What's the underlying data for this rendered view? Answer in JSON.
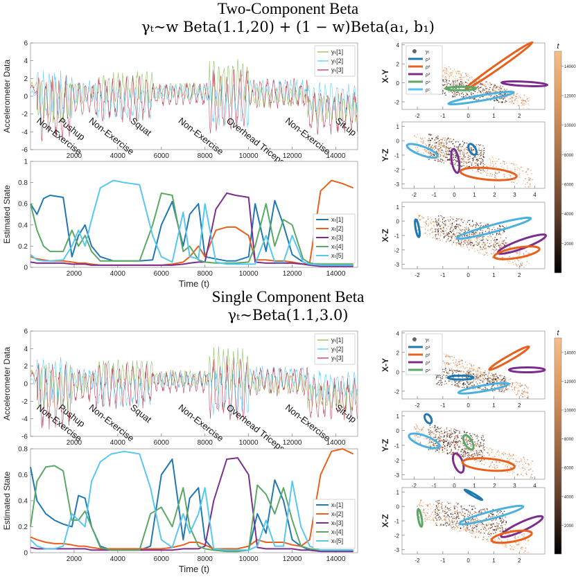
{
  "sections": [
    {
      "title": "Two-Component Beta",
      "formula": "γₜ~w Beta(1.1,20) + (1 − w)Beta(a₁, b₁)"
    },
    {
      "title": "Single Component Beta",
      "formula": "γₜ~Beta(1.1,3.0)"
    }
  ],
  "chart_data": [
    {
      "type": "line",
      "id": "top_accel",
      "xlim": [
        0,
        15000
      ],
      "ylim": [
        -6,
        6
      ],
      "xticks": [
        2000,
        4000,
        6000,
        8000,
        10000,
        12000,
        14000
      ],
      "yticks": [
        -6,
        -4,
        -2,
        0,
        2,
        4,
        6
      ],
      "ylabel": "Accelerometer Data",
      "series": [
        {
          "name": "yₜ[1]",
          "color": "#7ab648"
        },
        {
          "name": "yₜ[2]",
          "color": "#4fc3f7"
        },
        {
          "name": "yₜ[3]",
          "color": "#b5253e"
        }
      ],
      "segments": [
        {
          "label": "Non-Exercise",
          "x": 0
        },
        {
          "label": "Pushup",
          "x": 1000
        },
        {
          "label": "Non-Exercise",
          "x": 2400
        },
        {
          "label": "Squat",
          "x": 4300
        },
        {
          "label": "Non-Exercise",
          "x": 6500
        },
        {
          "label": "Overhead Triceps Extension",
          "x": 8700
        },
        {
          "label": "Non-Exercise",
          "x": 11400
        },
        {
          "label": "Sit-up",
          "x": 13700
        }
      ]
    },
    {
      "type": "line",
      "id": "top_state",
      "xlim": [
        0,
        15000
      ],
      "ylim": [
        0,
        1
      ],
      "xticks": [
        2000,
        4000,
        6000,
        8000,
        10000,
        12000,
        14000
      ],
      "yticks": [
        0,
        0.2,
        0.4,
        0.6,
        0.8,
        1
      ],
      "ylabel": "Estimated State",
      "xlabel": "Time (t)",
      "x": [
        0,
        300,
        600,
        900,
        1500,
        1900,
        2200,
        2500,
        2800,
        3200,
        3800,
        4300,
        5000,
        5600,
        6000,
        6500,
        7000,
        7300,
        7700,
        8000,
        8500,
        9000,
        9400,
        10000,
        10300,
        10800,
        11200,
        11600,
        12000,
        12500,
        12800,
        13300,
        13800,
        14300,
        14800
      ],
      "series": [
        {
          "name": "xₜ[1]",
          "color": "#1f77b4",
          "values": [
            0.6,
            0.5,
            0.65,
            0.68,
            0.66,
            0.1,
            0.3,
            0.4,
            0.2,
            0.1,
            0.06,
            0.06,
            0.06,
            0.07,
            0.4,
            0.62,
            0.2,
            0.5,
            0.6,
            0.1,
            0.08,
            0.06,
            0.06,
            0.1,
            0.6,
            0.15,
            0.63,
            0.4,
            0.12,
            0.05,
            0.03,
            0.02,
            0.02,
            0.02,
            0.02
          ]
        },
        {
          "name": "xₜ[2]",
          "color": "#e8601c",
          "values": [
            0.1,
            0.08,
            0.07,
            0.06,
            0.06,
            0.05,
            0.04,
            0.04,
            0.03,
            0.02,
            0.02,
            0.02,
            0.02,
            0.02,
            0.02,
            0.03,
            0.05,
            0.1,
            0.2,
            0.1,
            0.35,
            0.38,
            0.38,
            0.3,
            0.07,
            0.07,
            0.06,
            0.06,
            0.05,
            0.03,
            0.04,
            0.72,
            0.82,
            0.79,
            0.75
          ]
        },
        {
          "name": "xₜ[3]",
          "color": "#7b2d8e",
          "values": [
            0.05,
            0.04,
            0.04,
            0.04,
            0.04,
            0.03,
            0.03,
            0.03,
            0.02,
            0.02,
            0.02,
            0.02,
            0.02,
            0.02,
            0.02,
            0.02,
            0.03,
            0.04,
            0.05,
            0.05,
            0.55,
            0.7,
            0.68,
            0.66,
            0.05,
            0.04,
            0.04,
            0.04,
            0.04,
            0.03,
            0.02,
            0.01,
            0.01,
            0.01,
            0.01
          ]
        },
        {
          "name": "xₜ[4]",
          "color": "#5aa866",
          "values": [
            0.6,
            0.35,
            0.2,
            0.15,
            0.15,
            0.35,
            0.2,
            0.3,
            0.15,
            0.06,
            0.06,
            0.06,
            0.06,
            0.4,
            0.7,
            0.68,
            0.15,
            0.2,
            0.07,
            0.05,
            0.04,
            0.04,
            0.04,
            0.05,
            0.2,
            0.6,
            0.2,
            0.45,
            0.4,
            0.08,
            0.04,
            0.03,
            0.03,
            0.03,
            0.03
          ]
        },
        {
          "name": "xₜ[5]",
          "color": "#56c8f0",
          "values": [
            0.12,
            0.07,
            0.06,
            0.06,
            0.07,
            0.2,
            0.35,
            0.2,
            0.45,
            0.75,
            0.82,
            0.8,
            0.78,
            0.3,
            0.1,
            0.05,
            0.52,
            0.1,
            0.08,
            0.6,
            0.05,
            0.03,
            0.03,
            0.03,
            0.03,
            0.3,
            0.05,
            0.05,
            0.3,
            0.05,
            0.03,
            0.02,
            0.02,
            0.02,
            0.02
          ]
        }
      ]
    },
    {
      "type": "line",
      "id": "bottom_accel",
      "xlim": [
        0,
        15000
      ],
      "ylim": [
        -6,
        6
      ],
      "xticks": [
        2000,
        4000,
        6000,
        8000,
        10000,
        12000,
        14000
      ],
      "yticks": [
        -6,
        -4,
        -2,
        0,
        2,
        4,
        6
      ],
      "ylabel": "Accelerometer Data",
      "series": [
        {
          "name": "yₜ[1]",
          "color": "#7ab648"
        },
        {
          "name": "yₜ[2]",
          "color": "#4fc3f7"
        },
        {
          "name": "yₜ[3]",
          "color": "#b5253e"
        }
      ],
      "segments": [
        {
          "label": "Non-Exercise",
          "x": 0
        },
        {
          "label": "Pushup",
          "x": 1000
        },
        {
          "label": "Non-Exercise",
          "x": 2400
        },
        {
          "label": "Squat",
          "x": 4300
        },
        {
          "label": "Non-Exercise",
          "x": 6500
        },
        {
          "label": "Overhead Triceps Extension",
          "x": 8700
        },
        {
          "label": "Non-Exercise",
          "x": 11400
        },
        {
          "label": "Sit-up",
          "x": 13700
        }
      ]
    },
    {
      "type": "line",
      "id": "bottom_state",
      "xlim": [
        0,
        15000
      ],
      "ylim": [
        0,
        0.8
      ],
      "xticks": [
        2000,
        4000,
        6000,
        8000,
        10000,
        12000,
        14000
      ],
      "yticks": [
        0,
        0.2,
        0.4,
        0.6,
        0.8
      ],
      "ylabel": "Estimated State",
      "xlabel": "Time (t)",
      "x": [
        0,
        300,
        700,
        1100,
        1500,
        1900,
        2200,
        2500,
        2800,
        3200,
        3700,
        4300,
        5000,
        5500,
        6000,
        6500,
        7000,
        7300,
        7700,
        8000,
        8400,
        9000,
        9500,
        10000,
        10400,
        10800,
        11200,
        11600,
        12000,
        12400,
        12800,
        13300,
        13800,
        14300,
        14800
      ],
      "series": [
        {
          "name": "xₜ[1]",
          "color": "#1f77b4",
          "values": [
            0.66,
            0.4,
            0.3,
            0.25,
            0.22,
            0.2,
            0.44,
            0.42,
            0.2,
            0.05,
            0.02,
            0.02,
            0.02,
            0.05,
            0.6,
            0.72,
            0.1,
            0.42,
            0.5,
            0.1,
            0.02,
            0.01,
            0.01,
            0.02,
            0.3,
            0.15,
            0.56,
            0.4,
            0.1,
            0.05,
            0.02,
            0.01,
            0.01,
            0.01,
            0.01
          ]
        },
        {
          "name": "xₜ[2]",
          "color": "#e8601c",
          "values": [
            0.12,
            0.1,
            0.08,
            0.07,
            0.07,
            0.06,
            0.05,
            0.05,
            0.04,
            0.03,
            0.03,
            0.03,
            0.03,
            0.03,
            0.03,
            0.04,
            0.06,
            0.08,
            0.08,
            0.06,
            0.03,
            0.03,
            0.03,
            0.05,
            0.1,
            0.08,
            0.08,
            0.08,
            0.06,
            0.05,
            0.1,
            0.6,
            0.78,
            0.8,
            0.76
          ]
        },
        {
          "name": "xₜ[3]",
          "color": "#7b2d8e",
          "values": [
            0.04,
            0.03,
            0.03,
            0.03,
            0.03,
            0.03,
            0.03,
            0.03,
            0.02,
            0.02,
            0.02,
            0.02,
            0.02,
            0.02,
            0.02,
            0.02,
            0.03,
            0.03,
            0.03,
            0.05,
            0.4,
            0.72,
            0.73,
            0.6,
            0.04,
            0.03,
            0.03,
            0.03,
            0.03,
            0.02,
            0.02,
            0.01,
            0.01,
            0.01,
            0.01
          ]
        },
        {
          "name": "xₜ[4]",
          "color": "#5aa866",
          "values": [
            0.2,
            0.55,
            0.66,
            0.67,
            0.63,
            0.25,
            0.25,
            0.32,
            0.2,
            0.04,
            0.02,
            0.02,
            0.02,
            0.3,
            0.35,
            0.2,
            0.5,
            0.2,
            0.05,
            0.03,
            0.02,
            0.01,
            0.01,
            0.02,
            0.52,
            0.45,
            0.3,
            0.5,
            0.25,
            0.05,
            0.03,
            0.02,
            0.02,
            0.02,
            0.02
          ]
        },
        {
          "name": "xₜ[5]",
          "color": "#56c8f0",
          "values": [
            0.1,
            0.05,
            0.03,
            0.03,
            0.05,
            0.3,
            0.25,
            0.2,
            0.55,
            0.7,
            0.76,
            0.78,
            0.76,
            0.5,
            0.1,
            0.04,
            0.3,
            0.15,
            0.3,
            0.5,
            0.03,
            0.02,
            0.02,
            0.02,
            0.05,
            0.25,
            0.05,
            0.05,
            0.55,
            0.2,
            0.05,
            0.02,
            0.02,
            0.02,
            0.02
          ]
        }
      ]
    },
    {
      "type": "scatter",
      "id": "top_scatter_xy",
      "ylabel": "X-Y",
      "xlim": [
        -2.6,
        3.0
      ],
      "ylim": [
        -2.8,
        4.2
      ],
      "xticks": [
        -2,
        -1,
        0,
        1,
        2
      ],
      "yticks": [
        -2,
        0,
        2,
        4
      ],
      "legend": [
        "yₜ",
        "ρ¹",
        "ρ²",
        "ρ³",
        "ρ⁴",
        "ρ⁵"
      ],
      "ellipses": [
        {
          "cx": 1.2,
          "cy": 1.8,
          "rx": 1.6,
          "ry": 0.25,
          "angle": -35,
          "color": "#e8601c"
        },
        {
          "cx": 2.2,
          "cy": -0.1,
          "rx": 0.9,
          "ry": 0.22,
          "angle": 3,
          "color": "#7b2d8e"
        },
        {
          "cx": 0.5,
          "cy": -1.6,
          "rx": 1.3,
          "ry": 0.28,
          "angle": -10,
          "color": "#4ab0e0"
        },
        {
          "cx": -0.3,
          "cy": -0.6,
          "rx": 0.6,
          "ry": 0.18,
          "angle": 0,
          "color": "#5aa866"
        }
      ]
    },
    {
      "type": "scatter",
      "id": "top_scatter_yz",
      "ylabel": "Y-Z",
      "xlim": [
        -2.6,
        4.5
      ],
      "ylim": [
        -3.3,
        1.3
      ],
      "xticks": [
        -2,
        -1,
        0,
        1,
        2,
        3,
        4
      ],
      "yticks": [
        -3,
        -2,
        -1,
        0,
        1
      ],
      "ellipses": [
        {
          "cx": -1.6,
          "cy": -0.7,
          "rx": 0.8,
          "ry": 0.3,
          "angle": 20,
          "color": "#4ab0e0"
        },
        {
          "cx": 0.9,
          "cy": -0.6,
          "rx": 0.3,
          "ry": 0.22,
          "angle": 60,
          "color": "#1f77b4"
        },
        {
          "cx": 0.05,
          "cy": -1.4,
          "rx": 0.6,
          "ry": 0.25,
          "angle": 80,
          "color": "#7b2d8e"
        },
        {
          "cx": 1.7,
          "cy": -2.3,
          "rx": 1.4,
          "ry": 0.4,
          "angle": 5,
          "color": "#e8601c"
        }
      ]
    },
    {
      "type": "scatter",
      "id": "top_scatter_xz",
      "ylabel": "X-Z",
      "xlim": [
        -2.6,
        3.0
      ],
      "ylim": [
        -3.3,
        1.3
      ],
      "xticks": [
        -2,
        -1,
        0,
        1,
        2
      ],
      "yticks": [
        -3,
        -2,
        -1,
        0,
        1
      ],
      "ellipses": [
        {
          "cx": -2.0,
          "cy": -0.5,
          "rx": 0.35,
          "ry": 0.12,
          "angle": 80,
          "color": "#1f77b4"
        },
        {
          "cx": 1.0,
          "cy": -0.5,
          "rx": 1.5,
          "ry": 0.25,
          "angle": -15,
          "color": "#4ab0e0"
        },
        {
          "cx": 2.1,
          "cy": -1.6,
          "rx": 1.0,
          "ry": 0.3,
          "angle": -20,
          "color": "#7b2d8e"
        },
        {
          "cx": 1.9,
          "cy": -2.2,
          "rx": 0.9,
          "ry": 0.35,
          "angle": -10,
          "color": "#e8601c"
        }
      ]
    },
    {
      "type": "scatter",
      "id": "bottom_scatter_xy",
      "ylabel": "X-Y",
      "xlim": [
        -2.6,
        3.0
      ],
      "ylim": [
        -2.8,
        4.2
      ],
      "xticks": [
        -2,
        -1,
        0,
        1,
        2
      ],
      "yticks": [
        -2,
        0,
        2,
        4
      ],
      "legend": [
        "yₜ",
        "ρ¹",
        "ρ²",
        "ρ³",
        "ρ⁴"
      ],
      "ellipses": [
        {
          "cx": 1.6,
          "cy": 1.4,
          "rx": 0.9,
          "ry": 0.25,
          "angle": -30,
          "color": "#e8601c"
        },
        {
          "cx": 2.3,
          "cy": 0.2,
          "rx": 0.7,
          "ry": 0.25,
          "angle": 0,
          "color": "#7b2d8e"
        },
        {
          "cx": 0.6,
          "cy": -1.7,
          "rx": 1.0,
          "ry": 0.3,
          "angle": -10,
          "color": "#4ab0e0"
        },
        {
          "cx": -0.3,
          "cy": -0.6,
          "rx": 0.5,
          "ry": 0.2,
          "angle": 0,
          "color": "#1f77b4"
        }
      ]
    },
    {
      "type": "scatter",
      "id": "bottom_scatter_yz",
      "ylabel": "Y-Z",
      "xlim": [
        -2.6,
        4.5
      ],
      "ylim": [
        -3.3,
        1.3
      ],
      "xticks": [
        -2,
        -1,
        0,
        1,
        2,
        3,
        4
      ],
      "yticks": [
        -3,
        -2,
        -1,
        0,
        1
      ],
      "ellipses": [
        {
          "cx": -1.3,
          "cy": 0.8,
          "rx": 0.25,
          "ry": 0.2,
          "angle": 60,
          "color": "#1f77b4"
        },
        {
          "cx": -1.5,
          "cy": -0.7,
          "rx": 0.8,
          "ry": 0.35,
          "angle": 20,
          "color": "#4ab0e0"
        },
        {
          "cx": 0.7,
          "cy": -0.8,
          "rx": 0.4,
          "ry": 0.25,
          "angle": 60,
          "color": "#5aa866"
        },
        {
          "cx": 0.2,
          "cy": -2.2,
          "rx": 0.5,
          "ry": 0.3,
          "angle": 70,
          "color": "#7b2d8e"
        },
        {
          "cx": 1.7,
          "cy": -2.3,
          "rx": 1.3,
          "ry": 0.4,
          "angle": 5,
          "color": "#e8601c"
        }
      ]
    },
    {
      "type": "scatter",
      "id": "bottom_scatter_xz",
      "ylabel": "X-Z",
      "xlim": [
        -2.6,
        3.0
      ],
      "ylim": [
        -3.3,
        1.3
      ],
      "xticks": [
        -2,
        -1,
        0,
        1,
        2
      ],
      "yticks": [
        -3,
        -2,
        -1,
        0,
        1
      ],
      "ellipses": [
        {
          "cx": 0.2,
          "cy": 0.8,
          "rx": 0.4,
          "ry": 0.08,
          "angle": 30,
          "color": "#1f77b4"
        },
        {
          "cx": -1.9,
          "cy": -0.8,
          "rx": 0.35,
          "ry": 0.12,
          "angle": 80,
          "color": "#5aa866"
        },
        {
          "cx": 0.9,
          "cy": -0.6,
          "rx": 1.3,
          "ry": 0.25,
          "angle": -15,
          "color": "#4ab0e0"
        },
        {
          "cx": 2.1,
          "cy": -1.4,
          "rx": 0.9,
          "ry": 0.3,
          "angle": -25,
          "color": "#7b2d8e"
        },
        {
          "cx": 1.7,
          "cy": -2.1,
          "rx": 0.8,
          "ry": 0.35,
          "angle": -10,
          "color": "#e8601c"
        }
      ]
    },
    {
      "type": "heatmap",
      "id": "colorbar_top",
      "title": "t",
      "ticks": [
        2000,
        4000,
        6000,
        8000,
        10000,
        12000,
        14000
      ],
      "range": [
        0,
        15000
      ],
      "colors": [
        "#000000",
        "#5a3b2a",
        "#a06a44",
        "#d9945c",
        "#f7be86"
      ]
    },
    {
      "type": "heatmap",
      "id": "colorbar_bottom",
      "title": "t",
      "ticks": [
        2000,
        4000,
        6000,
        8000,
        10000,
        12000,
        14000
      ],
      "range": [
        0,
        15000
      ],
      "colors": [
        "#000000",
        "#5a3b2a",
        "#a06a44",
        "#d9945c",
        "#f7be86"
      ]
    }
  ]
}
